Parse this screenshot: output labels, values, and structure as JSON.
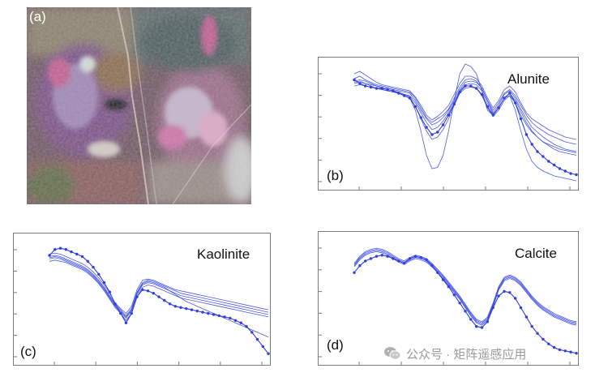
{
  "panels": {
    "a": {
      "tag": "(a)"
    },
    "b": {
      "tag": "(b)",
      "title": "Alunite"
    },
    "c": {
      "tag": "(c)",
      "title": "Kaolinite"
    },
    "d": {
      "tag": "(d)",
      "title": "Calcite"
    }
  },
  "watermark": {
    "text": "公众号 · 矩阵遥感应用",
    "icon": "wechat-icon"
  },
  "colors": {
    "line": "#2f3fe0",
    "frame": "#7a7a7a"
  },
  "chart_data": [
    {
      "panel": "b",
      "type": "line",
      "title": "Alunite",
      "x": [
        0,
        1,
        2,
        3,
        4,
        5,
        6,
        7,
        8,
        9,
        10,
        11,
        12,
        13,
        14,
        15,
        16,
        17,
        18,
        19,
        20,
        21,
        22,
        23,
        24,
        25,
        26,
        27,
        28,
        29,
        30,
        31,
        32,
        33,
        34,
        35,
        36,
        37,
        38,
        39,
        40
      ],
      "ylim": [
        0,
        1
      ],
      "series": [
        {
          "values": [
            0.85,
            0.86,
            0.84,
            0.83,
            0.82,
            0.81,
            0.8,
            0.79,
            0.78,
            0.77,
            0.76,
            0.7,
            0.62,
            0.55,
            0.5,
            0.52,
            0.56,
            0.62,
            0.7,
            0.79,
            0.85,
            0.86,
            0.85,
            0.8,
            0.7,
            0.6,
            0.66,
            0.75,
            0.78,
            0.72,
            0.63,
            0.55,
            0.48,
            0.44,
            0.4,
            0.37,
            0.34,
            0.32,
            0.3,
            0.29,
            0.28
          ]
        },
        {
          "values": [
            0.88,
            0.9,
            0.87,
            0.85,
            0.83,
            0.82,
            0.81,
            0.8,
            0.79,
            0.78,
            0.77,
            0.72,
            0.64,
            0.56,
            0.52,
            0.55,
            0.58,
            0.63,
            0.72,
            0.81,
            0.87,
            0.88,
            0.86,
            0.8,
            0.7,
            0.62,
            0.68,
            0.76,
            0.79,
            0.74,
            0.66,
            0.58,
            0.52,
            0.48,
            0.45,
            0.42,
            0.4,
            0.38,
            0.36,
            0.35,
            0.34
          ]
        },
        {
          "values": [
            0.92,
            0.94,
            0.91,
            0.88,
            0.85,
            0.83,
            0.82,
            0.81,
            0.8,
            0.79,
            0.78,
            0.73,
            0.66,
            0.58,
            0.54,
            0.57,
            0.61,
            0.66,
            0.75,
            0.84,
            0.9,
            0.9,
            0.88,
            0.82,
            0.72,
            0.64,
            0.7,
            0.79,
            0.82,
            0.77,
            0.68,
            0.6,
            0.55,
            0.52,
            0.49,
            0.46,
            0.44,
            0.42,
            0.4,
            0.39,
            0.38
          ]
        },
        {
          "values": [
            0.82,
            0.83,
            0.82,
            0.81,
            0.8,
            0.79,
            0.78,
            0.77,
            0.76,
            0.75,
            0.74,
            0.68,
            0.6,
            0.52,
            0.46,
            0.48,
            0.53,
            0.6,
            0.68,
            0.78,
            0.83,
            0.84,
            0.83,
            0.78,
            0.68,
            0.59,
            0.64,
            0.72,
            0.76,
            0.7,
            0.61,
            0.52,
            0.45,
            0.4,
            0.36,
            0.33,
            0.3,
            0.28,
            0.27,
            0.26,
            0.25
          ]
        },
        {
          "values": [
            0.86,
            0.87,
            0.86,
            0.84,
            0.82,
            0.8,
            0.79,
            0.78,
            0.77,
            0.75,
            0.73,
            0.65,
            0.55,
            0.45,
            0.38,
            0.4,
            0.46,
            0.55,
            0.66,
            0.76,
            0.8,
            0.81,
            0.8,
            0.74,
            0.64,
            0.57,
            0.62,
            0.7,
            0.74,
            0.68,
            0.58,
            0.5,
            0.44,
            0.4,
            0.36,
            0.34,
            0.32,
            0.3,
            0.29,
            0.28,
            0.27
          ]
        },
        {
          "values": [
            0.84,
            0.85,
            0.84,
            0.82,
            0.8,
            0.79,
            0.78,
            0.77,
            0.76,
            0.74,
            0.72,
            0.62,
            0.45,
            0.25,
            0.14,
            0.15,
            0.25,
            0.45,
            0.7,
            0.92,
            1.0,
            0.98,
            0.92,
            0.78,
            0.62,
            0.58,
            0.64,
            0.72,
            0.74,
            0.62,
            0.45,
            0.3,
            0.2,
            0.15,
            0.12,
            0.1,
            0.08,
            0.07,
            0.06,
            0.05,
            0.04
          ]
        },
        {
          "values": [
            0.87,
            0.84,
            0.82,
            0.81,
            0.8,
            0.8,
            0.79,
            0.78,
            0.76,
            0.74,
            0.72,
            0.65,
            0.56,
            0.48,
            0.42,
            0.44,
            0.5,
            0.58,
            0.67,
            0.77,
            0.82,
            0.82,
            0.8,
            0.75,
            0.65,
            0.58,
            0.64,
            0.72,
            0.76,
            0.68,
            0.55,
            0.42,
            0.34,
            0.28,
            0.24,
            0.2,
            0.17,
            0.14,
            0.12,
            0.1,
            0.09
          ],
          "markers": true
        }
      ]
    },
    {
      "panel": "c",
      "type": "line",
      "title": "Kaolinite",
      "x": [
        0,
        1,
        2,
        3,
        4,
        5,
        6,
        7,
        8,
        9,
        10,
        11,
        12,
        13,
        14,
        15,
        16,
        17,
        18,
        19,
        20,
        21,
        22,
        23,
        24,
        25,
        26,
        27,
        28,
        29,
        30,
        31,
        32,
        33,
        34,
        35,
        36,
        37,
        38,
        39,
        40
      ],
      "ylim": [
        0,
        1
      ],
      "series": [
        {
          "values": [
            0.88,
            0.89,
            0.88,
            0.86,
            0.84,
            0.82,
            0.8,
            0.77,
            0.73,
            0.68,
            0.62,
            0.55,
            0.47,
            0.42,
            0.38,
            0.44,
            0.58,
            0.66,
            0.67,
            0.66,
            0.64,
            0.62,
            0.6,
            0.58,
            0.57,
            0.56,
            0.55,
            0.54,
            0.53,
            0.52,
            0.51,
            0.5,
            0.49,
            0.48,
            0.47,
            0.46,
            0.45,
            0.44,
            0.43,
            0.42,
            0.41
          ]
        },
        {
          "values": [
            0.86,
            0.87,
            0.86,
            0.84,
            0.82,
            0.8,
            0.78,
            0.75,
            0.71,
            0.66,
            0.6,
            0.53,
            0.46,
            0.41,
            0.36,
            0.42,
            0.56,
            0.64,
            0.66,
            0.65,
            0.63,
            0.61,
            0.59,
            0.57,
            0.55,
            0.54,
            0.53,
            0.52,
            0.51,
            0.5,
            0.49,
            0.48,
            0.47,
            0.46,
            0.45,
            0.44,
            0.43,
            0.42,
            0.41,
            0.4,
            0.39
          ]
        },
        {
          "values": [
            0.84,
            0.85,
            0.84,
            0.82,
            0.8,
            0.78,
            0.76,
            0.73,
            0.69,
            0.64,
            0.58,
            0.51,
            0.44,
            0.39,
            0.34,
            0.4,
            0.54,
            0.62,
            0.64,
            0.63,
            0.61,
            0.59,
            0.57,
            0.55,
            0.53,
            0.52,
            0.51,
            0.5,
            0.49,
            0.48,
            0.47,
            0.46,
            0.45,
            0.44,
            0.43,
            0.42,
            0.41,
            0.4,
            0.39,
            0.38,
            0.37
          ]
        },
        {
          "values": [
            0.82,
            0.83,
            0.82,
            0.81,
            0.79,
            0.77,
            0.75,
            0.72,
            0.68,
            0.63,
            0.57,
            0.5,
            0.43,
            0.38,
            0.32,
            0.38,
            0.52,
            0.6,
            0.62,
            0.61,
            0.59,
            0.57,
            0.55,
            0.53,
            0.51,
            0.5,
            0.49,
            0.48,
            0.47,
            0.46,
            0.45,
            0.44,
            0.43,
            0.42,
            0.41,
            0.4,
            0.39,
            0.38,
            0.37,
            0.36,
            0.35
          ]
        },
        {
          "values": [
            0.85,
            0.86,
            0.85,
            0.83,
            0.81,
            0.79,
            0.77,
            0.74,
            0.7,
            0.65,
            0.59,
            0.52,
            0.45,
            0.4,
            0.35,
            0.41,
            0.55,
            0.63,
            0.65,
            0.64,
            0.62,
            0.6,
            0.57,
            0.54,
            0.51,
            0.48,
            0.46,
            0.44,
            0.42,
            0.4,
            0.38,
            0.36,
            0.34,
            0.32,
            0.3,
            0.28,
            0.26,
            0.24,
            0.22,
            0.2,
            0.18
          ]
        },
        {
          "values": [
            0.87,
            0.92,
            0.93,
            0.92,
            0.9,
            0.88,
            0.86,
            0.82,
            0.77,
            0.71,
            0.64,
            0.56,
            0.46,
            0.38,
            0.3,
            0.38,
            0.52,
            0.58,
            0.57,
            0.55,
            0.52,
            0.49,
            0.46,
            0.44,
            0.43,
            0.42,
            0.41,
            0.4,
            0.39,
            0.38,
            0.37,
            0.36,
            0.35,
            0.34,
            0.32,
            0.3,
            0.27,
            0.22,
            0.16,
            0.1,
            0.04
          ],
          "markers": true
        }
      ]
    },
    {
      "panel": "d",
      "type": "line",
      "title": "Calcite",
      "x": [
        0,
        1,
        2,
        3,
        4,
        5,
        6,
        7,
        8,
        9,
        10,
        11,
        12,
        13,
        14,
        15,
        16,
        17,
        18,
        19,
        20,
        21,
        22,
        23,
        24,
        25,
        26,
        27,
        28,
        29,
        30,
        31,
        32,
        33,
        34,
        35,
        36,
        37,
        38,
        39,
        40
      ],
      "ylim": [
        0,
        1
      ],
      "series": [
        {
          "values": [
            0.8,
            0.86,
            0.9,
            0.92,
            0.93,
            0.92,
            0.9,
            0.87,
            0.84,
            0.82,
            0.85,
            0.87,
            0.86,
            0.84,
            0.8,
            0.75,
            0.7,
            0.64,
            0.58,
            0.52,
            0.45,
            0.38,
            0.32,
            0.3,
            0.34,
            0.46,
            0.6,
            0.68,
            0.7,
            0.68,
            0.64,
            0.58,
            0.52,
            0.47,
            0.43,
            0.4,
            0.37,
            0.35,
            0.33,
            0.31,
            0.3
          ]
        },
        {
          "values": [
            0.78,
            0.84,
            0.88,
            0.9,
            0.91,
            0.9,
            0.88,
            0.85,
            0.82,
            0.8,
            0.83,
            0.85,
            0.84,
            0.82,
            0.78,
            0.73,
            0.68,
            0.62,
            0.56,
            0.5,
            0.43,
            0.36,
            0.3,
            0.28,
            0.32,
            0.44,
            0.58,
            0.66,
            0.68,
            0.66,
            0.62,
            0.56,
            0.5,
            0.45,
            0.41,
            0.38,
            0.35,
            0.33,
            0.31,
            0.29,
            0.28
          ]
        },
        {
          "values": [
            0.79,
            0.85,
            0.89,
            0.91,
            0.92,
            0.91,
            0.89,
            0.86,
            0.83,
            0.81,
            0.84,
            0.86,
            0.85,
            0.83,
            0.79,
            0.74,
            0.69,
            0.63,
            0.57,
            0.51,
            0.44,
            0.37,
            0.31,
            0.29,
            0.33,
            0.45,
            0.59,
            0.67,
            0.69,
            0.67,
            0.63,
            0.57,
            0.51,
            0.46,
            0.42,
            0.39,
            0.36,
            0.34,
            0.32,
            0.3,
            0.29
          ]
        },
        {
          "values": [
            0.77,
            0.83,
            0.87,
            0.89,
            0.9,
            0.89,
            0.87,
            0.84,
            0.81,
            0.79,
            0.82,
            0.84,
            0.83,
            0.81,
            0.77,
            0.72,
            0.67,
            0.61,
            0.55,
            0.49,
            0.42,
            0.35,
            0.29,
            0.27,
            0.31,
            0.43,
            0.57,
            0.65,
            0.67,
            0.65,
            0.61,
            0.55,
            0.49,
            0.44,
            0.4,
            0.37,
            0.34,
            0.32,
            0.3,
            0.28,
            0.27
          ]
        },
        {
          "values": [
            0.72,
            0.78,
            0.82,
            0.84,
            0.86,
            0.87,
            0.86,
            0.84,
            0.82,
            0.8,
            0.84,
            0.86,
            0.85,
            0.83,
            0.78,
            0.72,
            0.66,
            0.6,
            0.53,
            0.46,
            0.39,
            0.32,
            0.26,
            0.25,
            0.3,
            0.42,
            0.52,
            0.56,
            0.55,
            0.5,
            0.42,
            0.34,
            0.26,
            0.2,
            0.15,
            0.11,
            0.08,
            0.06,
            0.05,
            0.04,
            0.03
          ],
          "markers": true
        }
      ]
    }
  ]
}
